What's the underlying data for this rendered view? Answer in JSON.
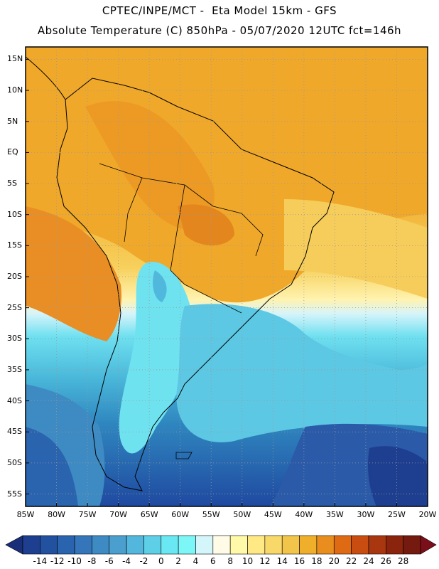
{
  "header": {
    "line1": "CPTEC/INPE/MCT -  Eta Model 15km - GFS",
    "line2": "Absolute Temperature (C) 850hPa - 05/07/2020 12UTC fct=146h"
  },
  "map": {
    "lon_range": [
      -85,
      -20
    ],
    "lat_range": [
      -57,
      17
    ],
    "grid": true,
    "lat_ticks": [
      {
        "v": 15,
        "label": "15N"
      },
      {
        "v": 10,
        "label": "10N"
      },
      {
        "v": 5,
        "label": "5N"
      },
      {
        "v": 0,
        "label": "EQ"
      },
      {
        "v": -5,
        "label": "5S"
      },
      {
        "v": -10,
        "label": "10S"
      },
      {
        "v": -15,
        "label": "15S"
      },
      {
        "v": -20,
        "label": "20S"
      },
      {
        "v": -25,
        "label": "25S"
      },
      {
        "v": -30,
        "label": "30S"
      },
      {
        "v": -35,
        "label": "35S"
      },
      {
        "v": -40,
        "label": "40S"
      },
      {
        "v": -45,
        "label": "45S"
      },
      {
        "v": -50,
        "label": "50S"
      },
      {
        "v": -55,
        "label": "55S"
      }
    ],
    "lon_ticks": [
      {
        "v": -85,
        "label": "85W"
      },
      {
        "v": -80,
        "label": "80W"
      },
      {
        "v": -75,
        "label": "75W"
      },
      {
        "v": -70,
        "label": "70W"
      },
      {
        "v": -65,
        "label": "65W"
      },
      {
        "v": -60,
        "label": "60W"
      },
      {
        "v": -55,
        "label": "55W"
      },
      {
        "v": -50,
        "label": "50W"
      },
      {
        "v": -45,
        "label": "45W"
      },
      {
        "v": -40,
        "label": "40W"
      },
      {
        "v": -35,
        "label": "35W"
      },
      {
        "v": -30,
        "label": "30W"
      },
      {
        "v": -25,
        "label": "25W"
      },
      {
        "v": -20,
        "label": "20W"
      }
    ]
  },
  "colorbar": {
    "labels": [
      "-14",
      "-12",
      "-10",
      "-8",
      "-6",
      "-4",
      "-2",
      "0",
      "2",
      "4",
      "6",
      "8",
      "10",
      "12",
      "14",
      "16",
      "18",
      "20",
      "22",
      "24",
      "26",
      "28"
    ],
    "colors": [
      "#1e3f8f",
      "#2251a0",
      "#2a63ae",
      "#3476b9",
      "#3e8ac3",
      "#4a9fce",
      "#53b6dc",
      "#5dd0e8",
      "#69e7f2",
      "#7df6f8",
      "#d4f6fb",
      "#fffbe6",
      "#fff9a8",
      "#ffe985",
      "#f9d86a",
      "#f2c54a",
      "#efaf2a",
      "#e98e1e",
      "#df6a14",
      "#c94d10",
      "#a8360e",
      "#8a240c",
      "#741a0e"
    ],
    "under_color": "#1a2f7a",
    "over_color": "#7a0f1a"
  }
}
